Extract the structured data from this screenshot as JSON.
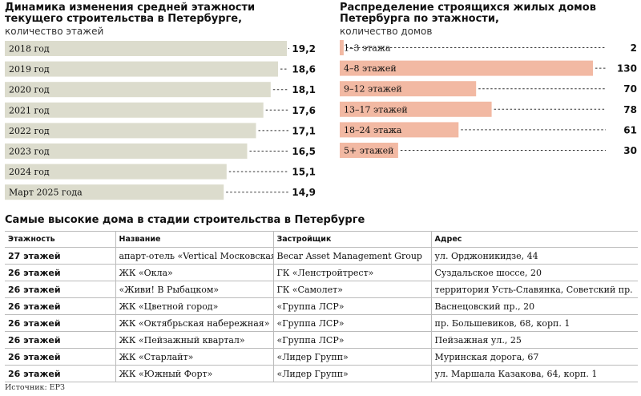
{
  "left_chart": {
    "title_line1": "Динамика изменения средней этажности",
    "title_line2": "текущего строительства в Петербурге,",
    "subtitle": "количество этажей"
  },
  "right_chart": {
    "title_line1": "Распределение строящихся жилых домов",
    "title_line2": "Петербурга по этажности,",
    "subtitle": "количество домов"
  },
  "chart_data": [
    {
      "type": "bar",
      "orientation": "horizontal",
      "title": "Динамика изменения средней этажности текущего строительства в Петербурге,",
      "subtitle": "количество этажей",
      "categories": [
        "2018 год",
        "2019 год",
        "2020 год",
        "2021 год",
        "2022 год",
        "2023 год",
        "2024 год",
        "Март 2025 года"
      ],
      "values": [
        19.2,
        18.6,
        18.1,
        17.6,
        17.1,
        16.5,
        15.1,
        14.9
      ],
      "value_labels": [
        "19,2",
        "18,6",
        "18,1",
        "17,6",
        "17,1",
        "16,5",
        "15,1",
        "14,9"
      ],
      "color": "#dcdccd"
    },
    {
      "type": "bar",
      "orientation": "horizontal",
      "title": "Распределение строящихся жилых домов Петербурга по этажности,",
      "subtitle": "количество домов",
      "categories": [
        "1–3 этажа",
        "4–8 этажей",
        "9–12 этажей",
        "13–17 этажей",
        "18–24 этажа",
        "5+ этажей"
      ],
      "values": [
        2,
        130,
        70,
        78,
        61,
        30
      ],
      "value_labels": [
        "2",
        "130",
        "70",
        "78",
        "61",
        "30"
      ],
      "color": "#f2b9a3"
    }
  ],
  "table": {
    "title": "Самые высокие дома в стадии строительства в Петербурге",
    "headers": [
      "Этажность",
      "Название",
      "Застройщик",
      "Адрес"
    ],
    "rows": [
      [
        "27 этажей",
        "апарт-отель «Vertical Московская»",
        "Becar Asset Management Group",
        "ул. Орджоникидзе, 44"
      ],
      [
        "26 этажей",
        "ЖК «Окла»",
        "ГК «Ленстройтрест»",
        "Суздальское шоссе, 20"
      ],
      [
        "26 этажей",
        "«Живи! В Рыбацком»",
        "ГК «Самолет»",
        "территория Усть-Славянка, Советский пр."
      ],
      [
        "26 этажей",
        "ЖК «Цветной город»",
        "«Группа ЛСР»",
        "Васнецовский пр., 20"
      ],
      [
        "26 этажей",
        "ЖК «Октябрьская набережная»",
        "«Группа ЛСР»",
        "пр. Большевиков, 68, корп. 1"
      ],
      [
        "26 этажей",
        "ЖК «Пейзажный квартал»",
        "«Группа ЛСР»",
        "Пейзажная ул., 25"
      ],
      [
        "26 этажей",
        "ЖК «Старлайт»",
        "«Лидер Групп»",
        "Муринская дорога, 67"
      ],
      [
        "26 этажей",
        "ЖК «Южный Форт»",
        "«Лидер Групп»",
        "ул. Маршала Казакова, 64, корп. 1"
      ]
    ]
  },
  "source": "Источник: ЕРЗ"
}
